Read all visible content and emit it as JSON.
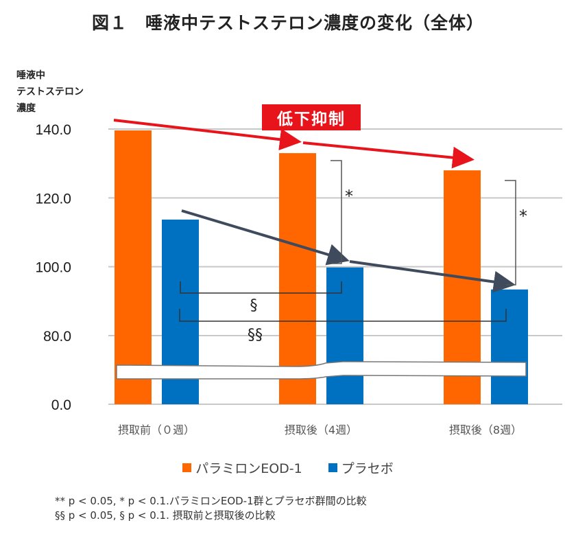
{
  "title": {
    "figure_number": "図１",
    "text": "唾液中テストステロン濃度の変化（全体）"
  },
  "callout": {
    "label": "低下抑制",
    "color": "#e8141c"
  },
  "significance_marks": {
    "between_groups_4w": "*",
    "between_groups_8w": "*",
    "placebo_pre_vs_4w": "§",
    "placebo_pre_vs_8w": "§§"
  },
  "footnotes": [
    "** p < 0.05, * p < 0.1.パラミロンEOD-1群とプラセボ群間の比較",
    "§§ p < 0.05, § p < 0.1. 摂取前と摂取後の比較"
  ],
  "chart_data": {
    "type": "bar",
    "title": "図１　唾液中テストステロン濃度の変化（全体）",
    "xlabel": "",
    "ylabel": [
      "唾液中",
      "テストステロン",
      "濃度"
    ],
    "categories": [
      "摂取前（０週）",
      "摂取後（4週）",
      "摂取後（8週）"
    ],
    "series": [
      {
        "name": "パラミロンEOD-1",
        "color": "#ff6600",
        "values": [
          139.6,
          133.0,
          128.0
        ]
      },
      {
        "name": "プラセボ",
        "color": "#0070c0",
        "values": [
          113.7,
          99.8,
          93.4
        ]
      }
    ],
    "y_ticks": [
      "0.0",
      "80.0",
      "100.0",
      "120.0",
      "140.0"
    ],
    "y_tick_values": [
      0,
      80,
      100,
      120,
      140
    ],
    "ylim": [
      0,
      140
    ],
    "axis_break": {
      "from": 0,
      "to": 80
    },
    "grid": true,
    "legend_position": "bottom"
  }
}
